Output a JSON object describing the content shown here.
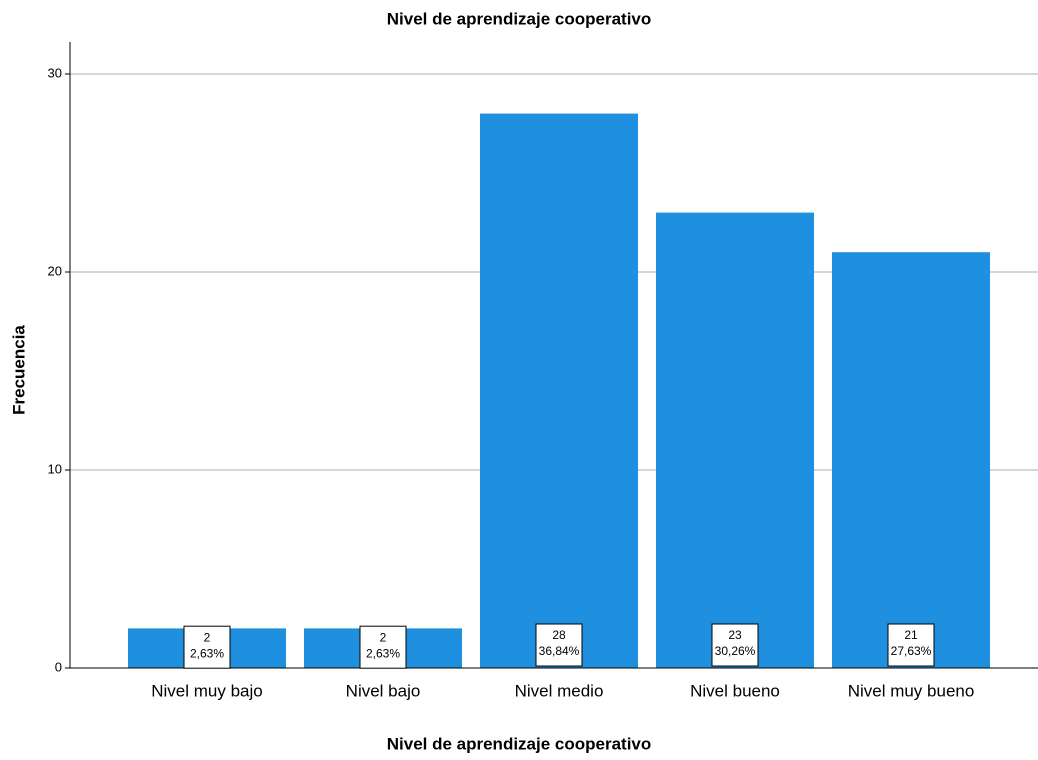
{
  "chart_data": {
    "type": "bar",
    "title": "Nivel de aprendizaje cooperativo",
    "x_label": "Nivel de aprendizaje cooperativo",
    "y_label": "Frecuencia",
    "categories": [
      "Nivel muy bajo",
      "Nivel bajo",
      "Nivel medio",
      "Nivel bueno",
      "Nivel muy bueno"
    ],
    "values": [
      2,
      2,
      28,
      23,
      21
    ],
    "percentages": [
      2.63,
      2.63,
      36.84,
      30.26,
      27.63
    ],
    "percentage_labels": [
      "2,63%",
      "2,63%",
      "36,84%",
      "30,26%",
      "27,63%"
    ],
    "color": "#1f8fe0",
    "ylim": [
      0,
      30
    ],
    "yticks": [
      0,
      10,
      20,
      30
    ],
    "grid": true
  }
}
